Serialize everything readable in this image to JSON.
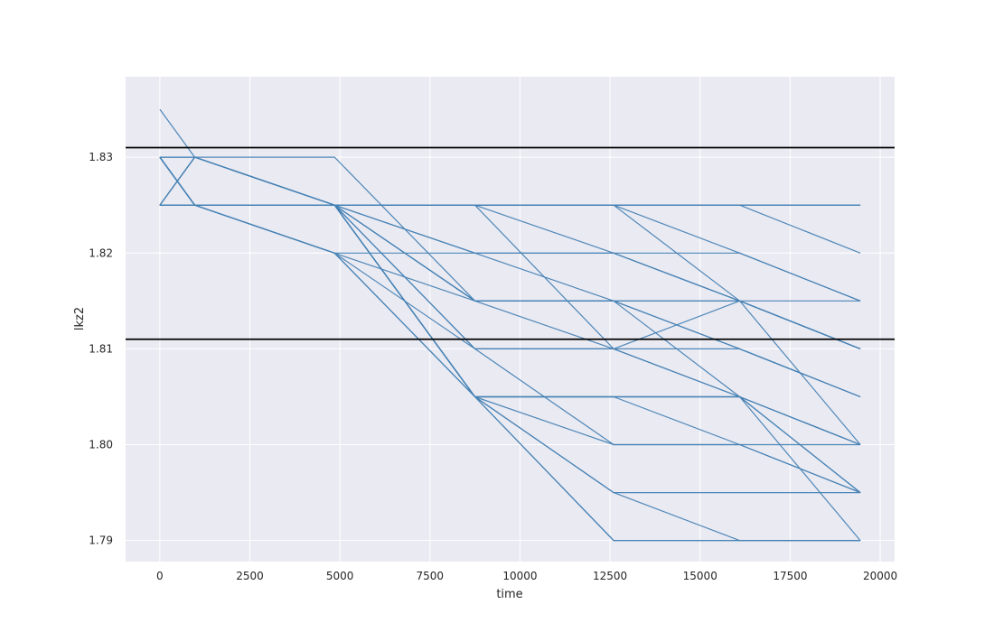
{
  "chart_data": {
    "type": "line",
    "title": "",
    "xlabel": "time",
    "ylabel": "lkz2",
    "xlim": [
      -950,
      20400
    ],
    "ylim": [
      1.7878,
      1.8384
    ],
    "xticks": [
      0,
      2500,
      5000,
      7500,
      10000,
      12500,
      15000,
      17500,
      20000
    ],
    "xtick_labels": [
      "0",
      "2500",
      "5000",
      "7500",
      "10000",
      "12500",
      "15000",
      "17500",
      "20000"
    ],
    "yticks": [
      1.79,
      1.8,
      1.81,
      1.82,
      1.83
    ],
    "ytick_labels": [
      "1.79",
      "1.80",
      "1.81",
      "1.82",
      "1.83"
    ],
    "grid": true,
    "legend": "none",
    "line_color": "#4682b4",
    "hlines": [
      {
        "y": 1.831,
        "color": "#000000"
      },
      {
        "y": 1.811,
        "color": "#000000"
      }
    ],
    "x_points": [
      0,
      970,
      4850,
      8750,
      12600,
      16100,
      19450
    ],
    "series": [
      {
        "values": [
          1.835,
          1.83,
          1.83,
          1.815,
          1.815,
          1.815,
          1.815
        ]
      },
      {
        "values": [
          1.83,
          1.825,
          1.825,
          1.825,
          1.825,
          1.825,
          1.825
        ]
      },
      {
        "values": [
          1.825,
          1.825,
          1.825,
          1.825,
          1.825,
          1.825,
          1.825
        ]
      },
      {
        "values": [
          1.83,
          1.83,
          1.825,
          1.825,
          1.825,
          1.825,
          1.825
        ]
      },
      {
        "values": [
          1.825,
          1.83,
          1.825,
          1.825,
          1.825,
          1.825,
          1.82
        ]
      },
      {
        "values": [
          1.83,
          1.825,
          1.825,
          1.825,
          1.825,
          1.82,
          1.815
        ]
      },
      {
        "values": [
          1.825,
          1.825,
          1.825,
          1.825,
          1.82,
          1.815,
          1.81
        ]
      },
      {
        "values": [
          1.83,
          1.825,
          1.825,
          1.82,
          1.815,
          1.81,
          1.805
        ]
      },
      {
        "values": [
          1.825,
          1.83,
          1.825,
          1.82,
          1.82,
          1.82,
          1.815
        ]
      },
      {
        "values": [
          1.83,
          1.825,
          1.82,
          1.82,
          1.82,
          1.815,
          1.81
        ]
      },
      {
        "values": [
          1.825,
          1.825,
          1.82,
          1.815,
          1.81,
          1.805,
          1.8
        ]
      },
      {
        "values": [
          1.83,
          1.825,
          1.82,
          1.81,
          1.81,
          1.805,
          1.8
        ]
      },
      {
        "values": [
          1.825,
          1.825,
          1.825,
          1.815,
          1.815,
          1.815,
          1.81
        ]
      },
      {
        "values": [
          1.83,
          1.83,
          1.825,
          1.815,
          1.815,
          1.81,
          1.805
        ]
      },
      {
        "values": [
          1.825,
          1.825,
          1.825,
          1.81,
          1.81,
          1.81,
          1.805
        ]
      },
      {
        "values": [
          1.83,
          1.825,
          1.825,
          1.81,
          1.8,
          1.8,
          1.8
        ]
      },
      {
        "values": [
          1.825,
          1.83,
          1.825,
          1.805,
          1.805,
          1.805,
          1.8
        ]
      },
      {
        "values": [
          1.83,
          1.825,
          1.825,
          1.805,
          1.805,
          1.805,
          1.795
        ]
      },
      {
        "values": [
          1.825,
          1.825,
          1.82,
          1.805,
          1.8,
          1.8,
          1.795
        ]
      },
      {
        "values": [
          1.83,
          1.825,
          1.825,
          1.805,
          1.795,
          1.795,
          1.795
        ]
      },
      {
        "values": [
          1.825,
          1.825,
          1.825,
          1.805,
          1.79,
          1.79,
          1.79
        ]
      },
      {
        "values": [
          1.83,
          1.825,
          1.82,
          1.805,
          1.79,
          1.79,
          1.79
        ]
      },
      {
        "values": [
          1.825,
          1.825,
          1.825,
          1.805,
          1.795,
          1.79,
          1.79
        ]
      },
      {
        "values": [
          1.83,
          1.825,
          1.825,
          1.825,
          1.81,
          1.815,
          1.81
        ]
      },
      {
        "values": [
          1.825,
          1.825,
          1.825,
          1.815,
          1.815,
          1.805,
          1.795
        ]
      },
      {
        "values": [
          1.83,
          1.825,
          1.825,
          1.805,
          1.805,
          1.805,
          1.79
        ]
      },
      {
        "values": [
          1.825,
          1.83,
          1.825,
          1.805,
          1.805,
          1.8,
          1.795
        ]
      },
      {
        "values": [
          1.83,
          1.825,
          1.825,
          1.825,
          1.825,
          1.815,
          1.8
        ]
      }
    ]
  }
}
